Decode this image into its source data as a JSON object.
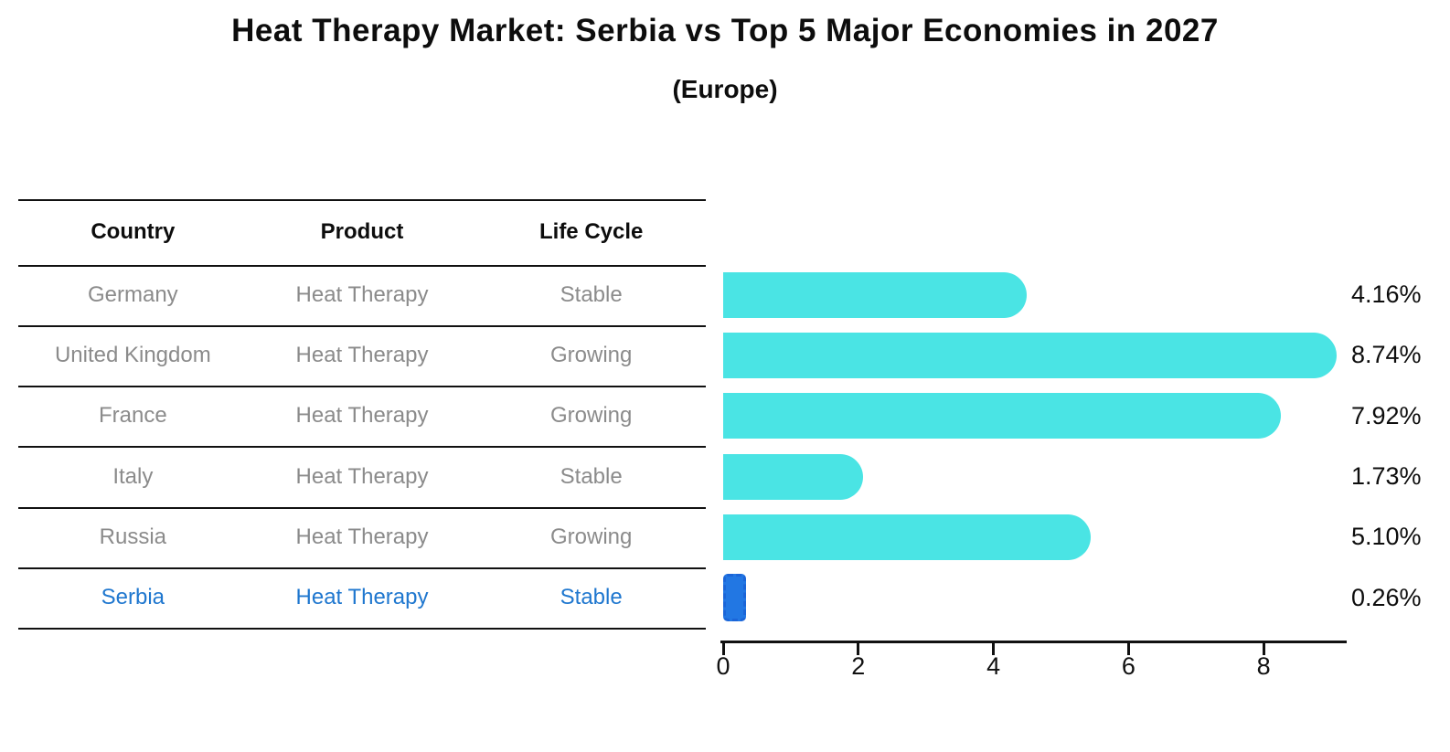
{
  "title": "Heat Therapy Market: Serbia vs Top 5 Major Economies in 2027",
  "subtitle": "(Europe)",
  "table": {
    "headers": [
      "Country",
      "Product",
      "Life Cycle"
    ],
    "rows": [
      {
        "country": "Germany",
        "product": "Heat Therapy",
        "life_cycle": "Stable",
        "highlight": false
      },
      {
        "country": "United Kingdom",
        "product": "Heat Therapy",
        "life_cycle": "Growing",
        "highlight": false
      },
      {
        "country": "France",
        "product": "Heat Therapy",
        "life_cycle": "Growing",
        "highlight": false
      },
      {
        "country": "Italy",
        "product": "Heat Therapy",
        "life_cycle": "Stable",
        "highlight": false
      },
      {
        "country": "Russia",
        "product": "Heat Therapy",
        "life_cycle": "Growing",
        "highlight": false
      },
      {
        "country": "Serbia",
        "product": "Heat Therapy",
        "life_cycle": "Stable",
        "highlight": true
      }
    ]
  },
  "chart_data": {
    "type": "bar",
    "orientation": "horizontal",
    "title": "Heat Therapy Market: Serbia vs Top 5 Major Economies in 2027",
    "subtitle": "(Europe)",
    "categories": [
      "Germany",
      "United Kingdom",
      "France",
      "Italy",
      "Russia",
      "Serbia"
    ],
    "values": [
      4.16,
      8.74,
      7.92,
      1.73,
      5.1,
      0.26
    ],
    "value_labels": [
      "4.16%",
      "8.74%",
      "7.92%",
      "1.73%",
      "5.10%",
      "0.26%"
    ],
    "xticks": [
      0,
      2,
      4,
      6,
      8
    ],
    "xlim": [
      0,
      9.25
    ],
    "grid": false,
    "legend": false,
    "highlight_index": 5
  },
  "colors": {
    "bar": "#4ae4e4",
    "highlight_bar_fill": "#2277e3",
    "highlight_bar_border": "#1b65d8",
    "highlight_text": "#1f77cf",
    "text": "#0d0d0d",
    "muted_text": "#8b8b8b",
    "line": "#111111"
  }
}
